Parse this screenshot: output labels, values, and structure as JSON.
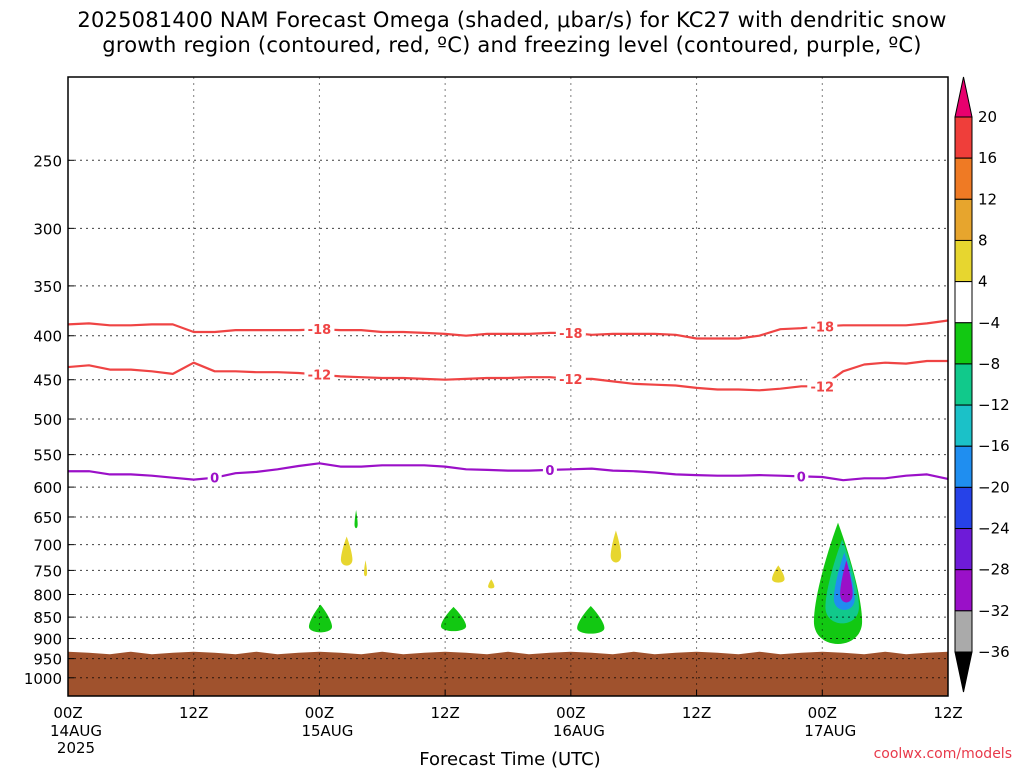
{
  "title": {
    "line1": "2025081400 NAM Forecast Omega (shaded, μbar/s) for KC27 with dendritic snow",
    "line2": "growth region (contoured, red, ºC) and freezing level (contoured, purple, ºC)"
  },
  "credit": "coolwx.com/models",
  "chart_data": {
    "type": "contour",
    "xlabel": "Forecast Time (UTC)",
    "ylabel": "",
    "x_range_hours": [
      0,
      84
    ],
    "y_axis": {
      "scale": "log-pressure",
      "range_mb": [
        1050,
        200
      ],
      "inverted": true,
      "ticks": [
        250,
        300,
        350,
        400,
        450,
        500,
        550,
        600,
        650,
        700,
        750,
        800,
        850,
        900,
        950,
        1000
      ]
    },
    "x_ticks": [
      {
        "hour": 0,
        "label": "00Z",
        "sub": [
          "14AUG",
          "2025"
        ]
      },
      {
        "hour": 12,
        "label": "12Z",
        "sub": []
      },
      {
        "hour": 24,
        "label": "00Z",
        "sub": [
          "15AUG"
        ]
      },
      {
        "hour": 36,
        "label": "12Z",
        "sub": []
      },
      {
        "hour": 48,
        "label": "00Z",
        "sub": [
          "16AUG"
        ]
      },
      {
        "hour": 60,
        "label": "12Z",
        "sub": []
      },
      {
        "hour": 72,
        "label": "00Z",
        "sub": [
          "17AUG"
        ]
      },
      {
        "hour": 84,
        "label": "12Z",
        "sub": []
      }
    ],
    "grid": true,
    "colorbar": {
      "labels": [
        "20",
        "16",
        "12",
        "8",
        "4",
        "−4",
        "−8",
        "−12",
        "−16",
        "−20",
        "−24",
        "−28",
        "−32",
        "−36"
      ],
      "colors": [
        "#e8006e",
        "#ef3e3a",
        "#ef7a24",
        "#e7a52d",
        "#e7d62f",
        "#ffffff",
        "#12c812",
        "#11c98b",
        "#1bc1c8",
        "#1f8ef0",
        "#2642e8",
        "#6e1bd8",
        "#9a10c8",
        "#aaaaaa",
        "#000000"
      ]
    },
    "surface": {
      "color": "#a0522d",
      "pressure_mb": 935
    },
    "contours": [
      {
        "label": "-18",
        "color": "#ef4444",
        "points": [
          [
            0,
            388
          ],
          [
            2,
            387
          ],
          [
            4,
            389
          ],
          [
            6,
            389
          ],
          [
            8,
            388
          ],
          [
            10,
            388
          ],
          [
            12,
            396
          ],
          [
            14,
            396
          ],
          [
            16,
            394
          ],
          [
            18,
            394
          ],
          [
            20,
            394
          ],
          [
            22,
            394
          ],
          [
            24,
            393
          ],
          [
            26,
            394
          ],
          [
            28,
            394
          ],
          [
            30,
            396
          ],
          [
            32,
            396
          ],
          [
            34,
            397
          ],
          [
            36,
            398
          ],
          [
            38,
            400
          ],
          [
            40,
            398
          ],
          [
            42,
            398
          ],
          [
            44,
            398
          ],
          [
            46,
            397
          ],
          [
            48,
            397
          ],
          [
            50,
            399
          ],
          [
            52,
            398
          ],
          [
            54,
            398
          ],
          [
            56,
            398
          ],
          [
            58,
            399
          ],
          [
            60,
            403
          ],
          [
            62,
            403
          ],
          [
            64,
            403
          ],
          [
            66,
            400
          ],
          [
            68,
            393
          ],
          [
            70,
            392
          ],
          [
            72,
            390
          ],
          [
            74,
            389
          ],
          [
            76,
            389
          ],
          [
            78,
            389
          ],
          [
            80,
            389
          ],
          [
            82,
            387
          ],
          [
            84,
            384
          ]
        ],
        "labels_at_hours": [
          24,
          48,
          72
        ]
      },
      {
        "label": "-12",
        "color": "#ef4444",
        "points": [
          [
            0,
            435
          ],
          [
            2,
            433
          ],
          [
            4,
            438
          ],
          [
            6,
            438
          ],
          [
            8,
            440
          ],
          [
            10,
            443
          ],
          [
            12,
            430
          ],
          [
            14,
            440
          ],
          [
            16,
            440
          ],
          [
            18,
            441
          ],
          [
            20,
            441
          ],
          [
            22,
            442
          ],
          [
            24,
            444
          ],
          [
            26,
            446
          ],
          [
            28,
            447
          ],
          [
            30,
            448
          ],
          [
            32,
            448
          ],
          [
            34,
            449
          ],
          [
            36,
            450
          ],
          [
            38,
            449
          ],
          [
            40,
            448
          ],
          [
            42,
            448
          ],
          [
            44,
            447
          ],
          [
            46,
            447
          ],
          [
            48,
            449
          ],
          [
            50,
            449
          ],
          [
            52,
            452
          ],
          [
            54,
            455
          ],
          [
            56,
            456
          ],
          [
            58,
            457
          ],
          [
            60,
            460
          ],
          [
            62,
            462
          ],
          [
            64,
            462
          ],
          [
            66,
            463
          ],
          [
            68,
            461
          ],
          [
            70,
            458
          ],
          [
            72,
            458
          ],
          [
            74,
            440
          ],
          [
            76,
            432
          ],
          [
            78,
            430
          ],
          [
            80,
            431
          ],
          [
            82,
            428
          ],
          [
            84,
            428
          ]
        ],
        "labels_at_hours": [
          24,
          48,
          72
        ]
      },
      {
        "label": "0",
        "color": "#9b10c8",
        "points": [
          [
            0,
            575
          ],
          [
            2,
            575
          ],
          [
            4,
            580
          ],
          [
            6,
            580
          ],
          [
            8,
            582
          ],
          [
            10,
            585
          ],
          [
            12,
            588
          ],
          [
            14,
            585
          ],
          [
            16,
            578
          ],
          [
            18,
            576
          ],
          [
            20,
            572
          ],
          [
            22,
            567
          ],
          [
            24,
            563
          ],
          [
            26,
            568
          ],
          [
            28,
            568
          ],
          [
            30,
            566
          ],
          [
            32,
            566
          ],
          [
            34,
            566
          ],
          [
            36,
            568
          ],
          [
            38,
            572
          ],
          [
            40,
            573
          ],
          [
            42,
            574
          ],
          [
            44,
            574
          ],
          [
            46,
            573
          ],
          [
            48,
            572
          ],
          [
            50,
            571
          ],
          [
            52,
            574
          ],
          [
            54,
            575
          ],
          [
            56,
            577
          ],
          [
            58,
            580
          ],
          [
            60,
            581
          ],
          [
            62,
            582
          ],
          [
            64,
            582
          ],
          [
            66,
            581
          ],
          [
            68,
            582
          ],
          [
            70,
            583
          ],
          [
            72,
            584
          ],
          [
            74,
            589
          ],
          [
            76,
            586
          ],
          [
            78,
            586
          ],
          [
            80,
            582
          ],
          [
            82,
            580
          ],
          [
            84,
            587
          ]
        ],
        "labels_at_hours": [
          14,
          46,
          70
        ]
      }
    ],
    "omega_blobs": [
      {
        "hour": 24.1,
        "cx_mb": 862,
        "rx_h": 1.1,
        "ry_mb": 40,
        "color": "#12c812"
      },
      {
        "hour": 36.8,
        "cx_mb": 862,
        "rx_h": 1.2,
        "ry_mb": 35,
        "color": "#12c812"
      },
      {
        "hour": 49.9,
        "cx_mb": 865,
        "rx_h": 1.3,
        "ry_mb": 40,
        "color": "#12c812"
      },
      {
        "hour": 73.5,
        "cx_mb": 820,
        "rx_h": 2.3,
        "ry_mb": 160,
        "color": "#12c812"
      },
      {
        "hour": 73.9,
        "cx_mb": 800,
        "rx_h": 1.6,
        "ry_mb": 110,
        "color": "#11c98b"
      },
      {
        "hour": 74.1,
        "cx_mb": 790,
        "rx_h": 1.0,
        "ry_mb": 75,
        "color": "#1f8ef0"
      },
      {
        "hour": 74.3,
        "cx_mb": 785,
        "rx_h": 0.6,
        "ry_mb": 55,
        "color": "#9a10c8"
      },
      {
        "hour": 26.6,
        "cx_mb": 720,
        "rx_h": 0.55,
        "ry_mb": 35,
        "color": "#e7d62f"
      },
      {
        "hour": 27.5,
        "cx_mb": 658,
        "rx_h": 0.15,
        "ry_mb": 20,
        "color": "#12c812"
      },
      {
        "hour": 28.4,
        "cx_mb": 750,
        "rx_h": 0.15,
        "ry_mb": 20,
        "color": "#e7d62f"
      },
      {
        "hour": 40.4,
        "cx_mb": 780,
        "rx_h": 0.3,
        "ry_mb": 12,
        "color": "#e7d62f"
      },
      {
        "hour": 52.3,
        "cx_mb": 712,
        "rx_h": 0.5,
        "ry_mb": 38,
        "color": "#e7d62f"
      },
      {
        "hour": 67.8,
        "cx_mb": 762,
        "rx_h": 0.6,
        "ry_mb": 22,
        "color": "#e7d62f"
      }
    ]
  }
}
